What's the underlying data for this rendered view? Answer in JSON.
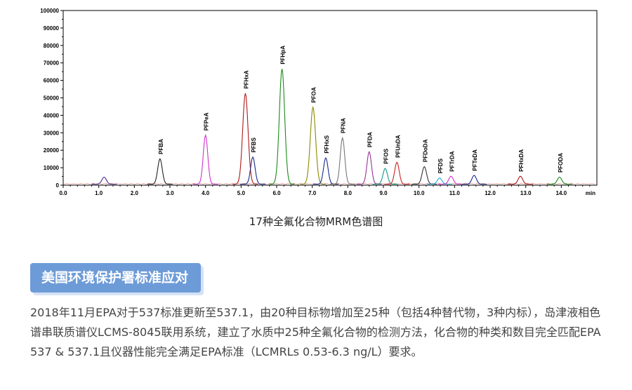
{
  "chart_data": {
    "type": "line",
    "title": "",
    "xlabel": "min",
    "ylabel": "",
    "xlim": [
      0.0,
      15.0
    ],
    "ylim": [
      0,
      100000
    ],
    "x_ticks": [
      "0.0",
      "1.0",
      "2.0",
      "3.0",
      "4.0",
      "5.0",
      "6.0",
      "7.0",
      "8.0",
      "9.0",
      "10.0",
      "11.0",
      "12.0",
      "13.0",
      "14.0"
    ],
    "y_ticks": [
      "0",
      "10000",
      "20000",
      "30000",
      "40000",
      "50000",
      "60000",
      "70000",
      "80000",
      "90000",
      "100000"
    ],
    "peaks": [
      {
        "name": "",
        "rt": 1.15,
        "height": 4000,
        "color": "#4b2d8a"
      },
      {
        "name": "PFBA",
        "rt": 2.72,
        "height": 14500,
        "color": "#222222"
      },
      {
        "name": "PFPeA",
        "rt": 4.0,
        "height": 28000,
        "color": "#cc33cc"
      },
      {
        "name": "PFHxA",
        "rt": 5.12,
        "height": 52000,
        "color": "#b01818"
      },
      {
        "name": "PFBS",
        "rt": 5.33,
        "height": 15500,
        "color": "#1c2c8a"
      },
      {
        "name": "PFHpA",
        "rt": 6.15,
        "height": 66000,
        "color": "#1a8a1a"
      },
      {
        "name": "PFOA",
        "rt": 7.02,
        "height": 44000,
        "color": "#8a8a00"
      },
      {
        "name": "PFHxS",
        "rt": 7.38,
        "height": 15000,
        "color": "#1c2c8a"
      },
      {
        "name": "PFNA",
        "rt": 7.85,
        "height": 26500,
        "color": "#777777"
      },
      {
        "name": "PFDA",
        "rt": 8.6,
        "height": 18500,
        "color": "#993399"
      },
      {
        "name": "PFOS",
        "rt": 9.05,
        "height": 9000,
        "color": "#17988a"
      },
      {
        "name": "PFUnDA",
        "rt": 9.38,
        "height": 12500,
        "color": "#cc2222"
      },
      {
        "name": "PFDoDA",
        "rt": 10.15,
        "height": 10000,
        "color": "#333333"
      },
      {
        "name": "PFDS",
        "rt": 10.58,
        "height": 3500,
        "color": "#22aacc"
      },
      {
        "name": "PFTrDA",
        "rt": 10.9,
        "height": 4500,
        "color": "#cc33cc"
      },
      {
        "name": "PFTeDA",
        "rt": 11.55,
        "height": 5000,
        "color": "#1c2c8a"
      },
      {
        "name": "PFHxDA",
        "rt": 12.85,
        "height": 4500,
        "color": "#b01818"
      },
      {
        "name": "PFODA",
        "rt": 13.95,
        "height": 4000,
        "color": "#1a8a1a"
      }
    ]
  },
  "caption": "17种全氟化合物MRM色谱图",
  "section": {
    "title": "美国环境保护署标准应对",
    "body": "2018年11月EPA对于537标准更新至537.1，由20种目标物增加至25种（包括4种替代物，3种内标），岛津液相色谱串联质谱仪LCMS-8045联用系统，建立了水质中25种全氟化合物的检测方法，化合物的种类和数目完全匹配EPA 537 & 537.1且仪器性能完全满足EPA标准（LCMRLs 0.53-6.3 ng/L）要求。"
  }
}
